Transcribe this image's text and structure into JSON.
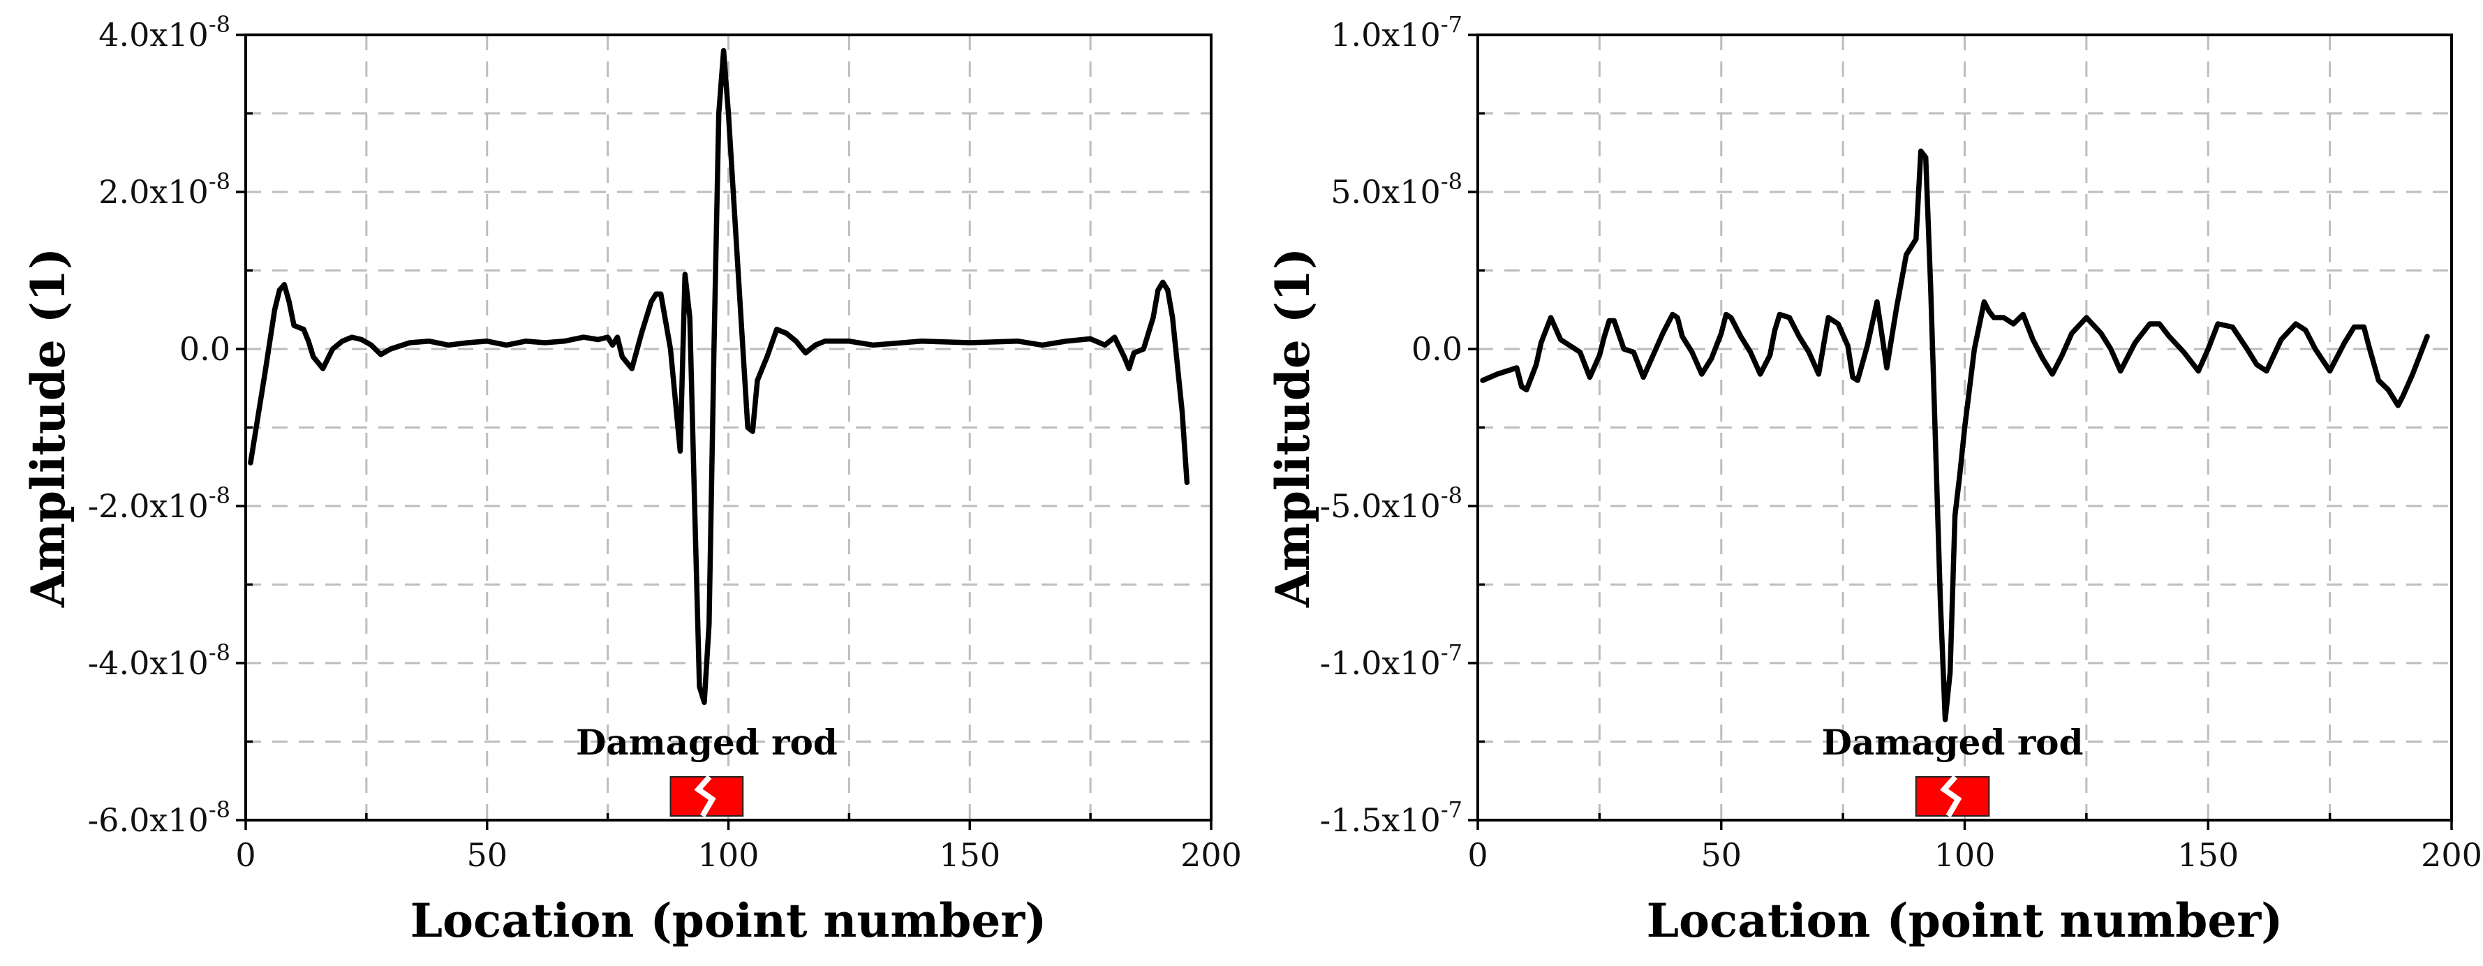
{
  "chart_data": [
    {
      "type": "line",
      "title": "",
      "xlabel": "Location (point number)",
      "ylabel": "Amplitude (1)",
      "xlim": [
        0,
        200
      ],
      "ylim": [
        -6e-08,
        4e-08
      ],
      "xticks": [
        0,
        50,
        100,
        150,
        200
      ],
      "xtick_labels": [
        "0",
        "50",
        "100",
        "150",
        "200"
      ],
      "yticks": [
        4e-08,
        2e-08,
        0,
        -2e-08,
        -4e-08,
        -6e-08
      ],
      "ytick_labels": [
        "4.0x10^-8",
        "2.0x10^-8",
        "0.0",
        "-2.0x10^-8",
        "-4.0x10^-8",
        "-6.0x10^-8"
      ],
      "grid": true,
      "grid_x": [
        25,
        75,
        125,
        175
      ],
      "grid_y": [
        3e-08,
        1e-08,
        -1e-08,
        -3e-08,
        -5e-08
      ],
      "annotation": {
        "label": "Damaged rod",
        "x_start": 88,
        "x_end": 103,
        "color": "#ff0000"
      },
      "series": [
        {
          "name": "Amplitude",
          "x": [
            1,
            4,
            6,
            7,
            8,
            9,
            10,
            12,
            13,
            14,
            16,
            18,
            20,
            22,
            24,
            26,
            28,
            30,
            34,
            38,
            42,
            46,
            50,
            54,
            58,
            62,
            66,
            70,
            73,
            75,
            76,
            77,
            78,
            80,
            82,
            84,
            85,
            86,
            88,
            90,
            91,
            92,
            93,
            94,
            95,
            96,
            97,
            98,
            99,
            100,
            102,
            104,
            105,
            106,
            108,
            110,
            112,
            114,
            116,
            118,
            120,
            125,
            130,
            140,
            150,
            160,
            165,
            170,
            175,
            178,
            180,
            182,
            183,
            184,
            186,
            188,
            189,
            190,
            191,
            192,
            194,
            195
          ],
          "y": [
            -1.45e-08,
            -3e-09,
            5e-09,
            7.5e-09,
            8.2e-09,
            6e-09,
            3e-09,
            2.5e-09,
            1e-09,
            -1e-09,
            -2.5e-09,
            0,
            1e-09,
            1.5e-09,
            1.2e-09,
            5e-10,
            -7e-10,
            0,
            8e-10,
            1e-09,
            5e-10,
            8e-10,
            1e-09,
            5e-10,
            1e-09,
            8e-10,
            1e-09,
            1.5e-09,
            1.2e-09,
            1.5e-09,
            5e-10,
            1.5e-09,
            -1e-09,
            -2.5e-09,
            2e-09,
            6e-09,
            7e-09,
            7e-09,
            0,
            -1.3e-08,
            9.5e-09,
            4e-09,
            -2e-08,
            -4.3e-08,
            -4.5e-08,
            -3.5e-08,
            0,
            3e-08,
            3.8e-08,
            3e-08,
            1e-08,
            -1e-08,
            -1.05e-08,
            -4e-09,
            -1e-09,
            2.5e-09,
            2e-09,
            1e-09,
            -5e-10,
            5e-10,
            1e-09,
            1e-09,
            5e-10,
            1e-09,
            8e-10,
            1e-09,
            5e-10,
            1e-09,
            1.3e-09,
            5e-10,
            1.5e-09,
            -1e-09,
            -2.5e-09,
            -5e-10,
            0,
            4e-09,
            7.5e-09,
            8.5e-09,
            7.5e-09,
            4e-09,
            -8e-09,
            -1.7e-08
          ]
        }
      ]
    },
    {
      "type": "line",
      "title": "",
      "xlabel": "Location (point number)",
      "ylabel": "Amplitude (1)",
      "xlim": [
        0,
        200
      ],
      "ylim": [
        -1.5e-07,
        1e-07
      ],
      "xticks": [
        0,
        50,
        100,
        150,
        200
      ],
      "xtick_labels": [
        "0",
        "50",
        "100",
        "150",
        "200"
      ],
      "yticks": [
        1e-07,
        5e-08,
        0,
        -5e-08,
        -1e-07,
        -1.5e-07
      ],
      "ytick_labels": [
        "1.0x10^-7",
        "5.0x10^-8",
        "0.0",
        "-5.0x10^-8",
        "-1.0x10^-7",
        "-1.5x10^-7"
      ],
      "grid": true,
      "grid_x": [
        25,
        75,
        125,
        175
      ],
      "grid_y": [
        7.5e-08,
        2.5e-08,
        -2.5e-08,
        -7.5e-08,
        -1.25e-07
      ],
      "annotation": {
        "label": "Damaged rod",
        "x_start": 90,
        "x_end": 105,
        "color": "#ff0000"
      },
      "series": [
        {
          "name": "Amplitude",
          "x": [
            1,
            4,
            6,
            8,
            9,
            10,
            12,
            13,
            15,
            17,
            19,
            20,
            21,
            23,
            25,
            26,
            27,
            28,
            30,
            32,
            34,
            36,
            38,
            40,
            41,
            42,
            44,
            46,
            48,
            50,
            51,
            52,
            54,
            56,
            58,
            60,
            61,
            62,
            64,
            66,
            68,
            70,
            71,
            72,
            74,
            76,
            77,
            78,
            80,
            82,
            84,
            86,
            88,
            90,
            91,
            92,
            93,
            94,
            95,
            96,
            97,
            98,
            99,
            100,
            102,
            104,
            105,
            106,
            108,
            110,
            112,
            113,
            114,
            116,
            118,
            120,
            122,
            125,
            128,
            130,
            132,
            135,
            138,
            140,
            142,
            145,
            148,
            150,
            152,
            155,
            158,
            160,
            162,
            165,
            168,
            170,
            172,
            175,
            178,
            180,
            182,
            183,
            185,
            187,
            189,
            190,
            192,
            195
          ],
          "y": [
            -1e-08,
            -8e-09,
            -7e-09,
            -6e-09,
            -1.2e-08,
            -1.3e-08,
            -5e-09,
            2e-09,
            1e-08,
            3e-09,
            1e-09,
            0,
            -1e-09,
            -9e-09,
            -2e-09,
            4e-09,
            9e-09,
            9e-09,
            0,
            -1e-09,
            -9e-09,
            -2e-09,
            5e-09,
            1.1e-08,
            1e-08,
            4e-09,
            -1e-09,
            -8e-09,
            -3e-09,
            5e-09,
            1.1e-08,
            1e-08,
            4e-09,
            -1e-09,
            -8e-09,
            -2e-09,
            6e-09,
            1.1e-08,
            1e-08,
            4e-09,
            -1e-09,
            -8e-09,
            1e-09,
            1e-08,
            8e-09,
            1e-09,
            -9e-09,
            -1e-08,
            1e-09,
            1.5e-08,
            -6e-09,
            1.3e-08,
            3e-08,
            3.5e-08,
            6.3e-08,
            6.1e-08,
            2e-08,
            -3e-08,
            -8e-08,
            -1.18e-07,
            -1.03e-07,
            -5.3e-08,
            -4e-08,
            -2.5e-08,
            0,
            1.5e-08,
            1.2e-08,
            1e-08,
            1e-08,
            8e-09,
            1.1e-08,
            7e-09,
            3e-09,
            -3e-09,
            -8e-09,
            -2e-09,
            5e-09,
            1e-08,
            5e-09,
            0,
            -7e-09,
            2e-09,
            8e-09,
            8e-09,
            4e-09,
            -1e-09,
            -7e-09,
            0,
            8e-09,
            7e-09,
            0,
            -5e-09,
            -7e-09,
            3e-09,
            8e-09,
            6e-09,
            0,
            -7e-09,
            2e-09,
            7e-09,
            7e-09,
            1e-09,
            -1e-08,
            -1.3e-08,
            -1.8e-08,
            -1.5e-08,
            -8e-09,
            4e-09
          ]
        }
      ]
    }
  ]
}
